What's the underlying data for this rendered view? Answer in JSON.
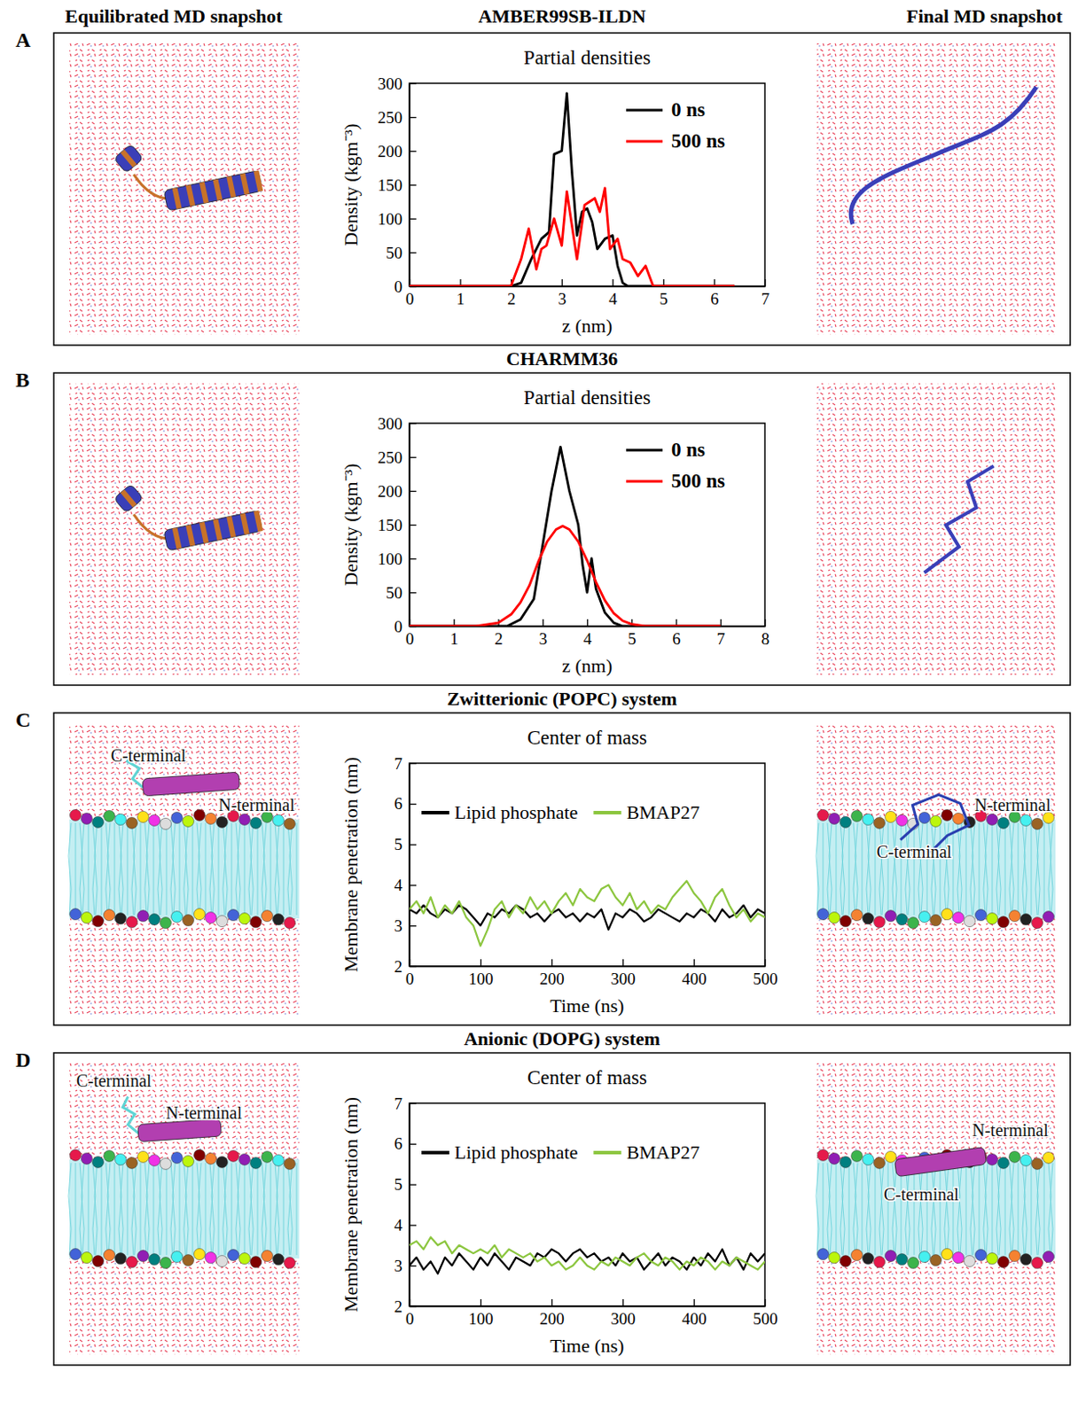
{
  "header": {
    "left": "Equilibrated MD snapshot",
    "right": "Final MD snapshot"
  },
  "chart_data": [
    {
      "type": "line",
      "panel": "A",
      "subtitle": "AMBER99SB-ILDN",
      "title": "Partial densities",
      "x_label": "z (nm)",
      "y_label": "Density (kgm⁻³)",
      "xlim": [
        0,
        7
      ],
      "ylim": [
        0,
        300
      ],
      "xticks": [
        0,
        1,
        2,
        3,
        4,
        5,
        6,
        7
      ],
      "yticks": [
        0,
        50,
        100,
        150,
        200,
        250,
        300
      ],
      "legend": "top-right",
      "series": [
        {
          "name": "0 ns",
          "color": "#000000",
          "x": [
            0,
            2.0,
            2.2,
            2.4,
            2.6,
            2.75,
            2.85,
            3.0,
            3.1,
            3.2,
            3.3,
            3.4,
            3.5,
            3.6,
            3.7,
            3.85,
            4.0,
            4.1,
            4.2,
            4.3,
            6.4
          ],
          "values": [
            0,
            0,
            5,
            40,
            70,
            80,
            195,
            200,
            285,
            170,
            75,
            110,
            115,
            95,
            55,
            70,
            75,
            30,
            5,
            0,
            0
          ]
        },
        {
          "name": "500 ns",
          "color": "#ff0000",
          "x": [
            0,
            2.0,
            2.2,
            2.35,
            2.5,
            2.6,
            2.7,
            2.85,
            3.0,
            3.1,
            3.2,
            3.3,
            3.45,
            3.55,
            3.65,
            3.75,
            3.85,
            3.95,
            4.1,
            4.2,
            4.35,
            4.5,
            4.65,
            4.8,
            6.4
          ],
          "values": [
            0,
            0,
            40,
            85,
            25,
            55,
            60,
            100,
            60,
            140,
            90,
            40,
            120,
            125,
            130,
            110,
            145,
            55,
            70,
            40,
            35,
            15,
            30,
            0,
            0
          ]
        }
      ]
    },
    {
      "type": "line",
      "panel": "B",
      "subtitle": "CHARMM36",
      "title": "Partial densities",
      "x_label": "z (nm)",
      "y_label": "Density (kgm⁻³)",
      "xlim": [
        0,
        8
      ],
      "ylim": [
        0,
        300
      ],
      "xticks": [
        0,
        1,
        2,
        3,
        4,
        5,
        6,
        7,
        8
      ],
      "yticks": [
        0,
        50,
        100,
        150,
        200,
        250,
        300
      ],
      "legend": "top-right",
      "series": [
        {
          "name": "0 ns",
          "color": "#000000",
          "x": [
            0,
            2.2,
            2.5,
            2.8,
            3.0,
            3.2,
            3.4,
            3.6,
            3.8,
            3.9,
            4.0,
            4.1,
            4.2,
            4.4,
            4.6,
            4.8,
            7
          ],
          "values": [
            0,
            0,
            10,
            40,
            120,
            200,
            265,
            200,
            150,
            90,
            50,
            100,
            55,
            20,
            5,
            0,
            0
          ]
        },
        {
          "name": "500 ns",
          "color": "#ff0000",
          "x": [
            0,
            1.5,
            2.0,
            2.3,
            2.5,
            2.7,
            2.9,
            3.1,
            3.3,
            3.45,
            3.6,
            3.8,
            4.0,
            4.2,
            4.4,
            4.6,
            4.8,
            5.0,
            5.3,
            7
          ],
          "values": [
            0,
            0,
            5,
            18,
            35,
            60,
            95,
            125,
            143,
            148,
            143,
            125,
            97,
            65,
            38,
            19,
            8,
            3,
            0,
            0
          ]
        }
      ]
    },
    {
      "type": "line",
      "panel": "C",
      "subtitle": "Zwitterionic (POPC) system",
      "title": "Center of mass",
      "x_label": "Time (ns)",
      "y_label": "Membrane penetration (nm)",
      "xlim": [
        0,
        500
      ],
      "ylim": [
        2,
        7
      ],
      "xticks": [
        0,
        100,
        200,
        300,
        400,
        500
      ],
      "yticks": [
        2,
        3,
        4,
        5,
        6,
        7
      ],
      "legend": "top",
      "annotations": [
        {
          "text": "C-terminal",
          "snapshot": "equilibrated"
        },
        {
          "text": "N-terminal",
          "snapshot": "equilibrated"
        },
        {
          "text": "N-terminal",
          "snapshot": "final"
        },
        {
          "text": "C-terminal",
          "snapshot": "final"
        }
      ],
      "x": [
        0,
        10,
        20,
        30,
        40,
        50,
        60,
        70,
        80,
        90,
        100,
        110,
        120,
        130,
        140,
        150,
        160,
        170,
        180,
        190,
        200,
        210,
        220,
        230,
        240,
        250,
        260,
        270,
        280,
        290,
        300,
        310,
        320,
        330,
        340,
        350,
        360,
        370,
        380,
        390,
        400,
        410,
        420,
        430,
        440,
        450,
        460,
        470,
        480,
        490,
        500
      ],
      "series": [
        {
          "name": "Lipid phosphate",
          "color": "#000000",
          "values": [
            3.4,
            3.3,
            3.5,
            3.3,
            3.2,
            3.4,
            3.3,
            3.5,
            3.4,
            3.2,
            3.0,
            3.3,
            3.2,
            3.4,
            3.3,
            3.5,
            3.4,
            3.2,
            3.3,
            3.1,
            3.3,
            3.4,
            3.2,
            3.3,
            3.1,
            3.3,
            3.2,
            3.4,
            2.9,
            3.3,
            3.2,
            3.4,
            3.3,
            3.1,
            3.2,
            3.4,
            3.3,
            3.2,
            3.1,
            3.3,
            3.2,
            3.4,
            3.3,
            3.1,
            3.4,
            3.2,
            3.3,
            3.5,
            3.2,
            3.4,
            3.3
          ]
        },
        {
          "name": "BMAP27",
          "color": "#8cc63f",
          "values": [
            3.4,
            3.6,
            3.3,
            3.7,
            3.2,
            3.5,
            3.3,
            3.6,
            3.2,
            3.0,
            2.5,
            2.9,
            3.4,
            3.6,
            3.2,
            3.5,
            3.3,
            3.7,
            3.4,
            3.6,
            3.3,
            3.6,
            3.8,
            3.5,
            3.9,
            3.7,
            3.6,
            3.9,
            4.0,
            3.7,
            3.5,
            3.8,
            3.4,
            3.6,
            3.3,
            3.5,
            3.4,
            3.7,
            3.9,
            4.1,
            3.8,
            3.6,
            3.3,
            3.7,
            3.9,
            3.5,
            3.2,
            3.4,
            3.1,
            3.3,
            3.2
          ]
        }
      ]
    },
    {
      "type": "line",
      "panel": "D",
      "subtitle": "Anionic (DOPG) system",
      "title": "Center of mass",
      "x_label": "Time (ns)",
      "y_label": "Membrane penetration (nm)",
      "xlim": [
        0,
        500
      ],
      "ylim": [
        2,
        7
      ],
      "xticks": [
        0,
        100,
        200,
        300,
        400,
        500
      ],
      "yticks": [
        2,
        3,
        4,
        5,
        6,
        7
      ],
      "legend": "top",
      "annotations": [
        {
          "text": "C-terminal",
          "snapshot": "equilibrated"
        },
        {
          "text": "N-terminal",
          "snapshot": "equilibrated"
        },
        {
          "text": "N-terminal",
          "snapshot": "final"
        },
        {
          "text": "C-terminal",
          "snapshot": "final"
        }
      ],
      "x": [
        0,
        10,
        20,
        30,
        40,
        50,
        60,
        70,
        80,
        90,
        100,
        110,
        120,
        130,
        140,
        150,
        160,
        170,
        180,
        190,
        200,
        210,
        220,
        230,
        240,
        250,
        260,
        270,
        280,
        290,
        300,
        310,
        320,
        330,
        340,
        350,
        360,
        370,
        380,
        390,
        400,
        410,
        420,
        430,
        440,
        450,
        460,
        470,
        480,
        490,
        500
      ],
      "series": [
        {
          "name": "Lipid phosphate",
          "color": "#000000",
          "values": [
            3.0,
            3.2,
            2.9,
            3.1,
            2.8,
            3.2,
            3.0,
            3.3,
            3.1,
            2.9,
            3.2,
            3.0,
            3.3,
            3.1,
            2.9,
            3.2,
            3.1,
            3.0,
            3.3,
            3.2,
            3.4,
            3.3,
            3.1,
            3.3,
            3.4,
            3.2,
            3.3,
            3.1,
            3.2,
            3.0,
            3.3,
            3.1,
            3.2,
            2.9,
            3.1,
            3.3,
            3.0,
            3.2,
            3.1,
            2.9,
            3.2,
            3.0,
            3.3,
            3.1,
            3.4,
            3.0,
            3.2,
            2.9,
            3.3,
            3.1,
            3.3
          ]
        },
        {
          "name": "BMAP27",
          "color": "#8cc63f",
          "values": [
            3.5,
            3.6,
            3.4,
            3.7,
            3.5,
            3.6,
            3.3,
            3.5,
            3.4,
            3.3,
            3.4,
            3.3,
            3.5,
            3.2,
            3.4,
            3.3,
            3.2,
            3.3,
            3.1,
            3.2,
            3.0,
            3.1,
            2.9,
            3.0,
            3.2,
            3.0,
            2.9,
            3.1,
            3.0,
            3.2,
            3.1,
            3.0,
            3.2,
            3.3,
            3.1,
            3.0,
            3.2,
            3.1,
            2.9,
            3.1,
            3.0,
            3.2,
            3.1,
            2.9,
            3.1,
            3.0,
            3.2,
            3.1,
            3.0,
            2.9,
            3.1
          ]
        }
      ]
    }
  ]
}
